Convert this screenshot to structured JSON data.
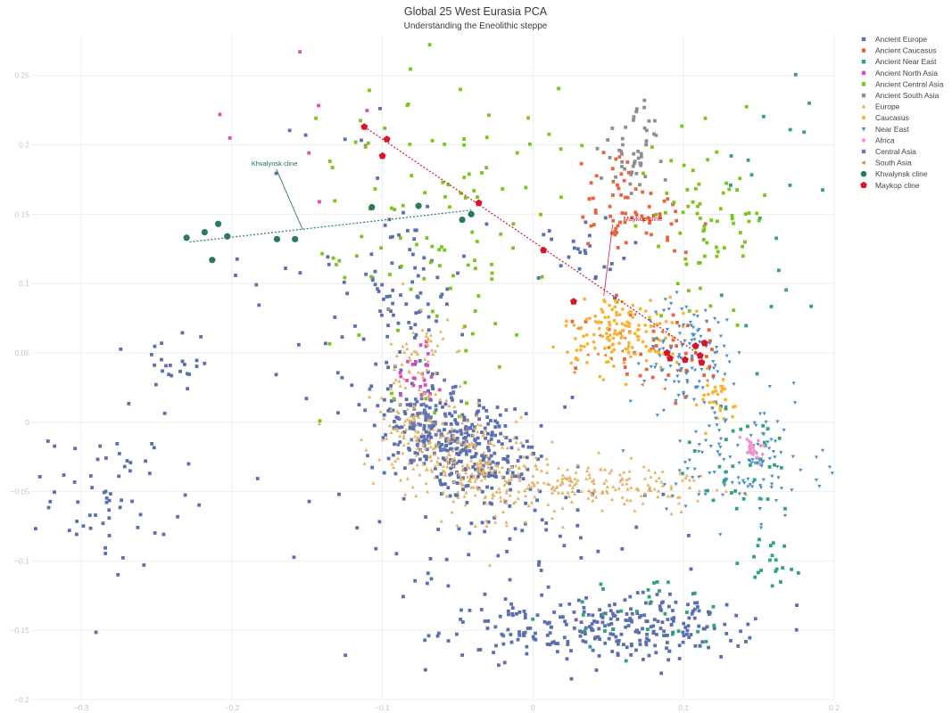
{
  "chart_data": {
    "type": "scatter",
    "title": "Global 25 West Eurasia PCA",
    "subtitle": "Understanding the Eneolithic steppe",
    "xlim": [
      -0.345,
      0.2
    ],
    "ylim": [
      -0.2,
      0.28
    ],
    "x_ticks": [
      -0.3,
      -0.2,
      -0.1,
      0,
      0.1,
      0.2
    ],
    "x_tick_labels": [
      "−0.3",
      "−0.2",
      "−0.1",
      "0",
      "0.1",
      "0.2"
    ],
    "y_ticks": [
      0.25,
      0.2,
      0.15,
      0.1,
      0.05,
      0,
      -0.05,
      -0.1,
      -0.15,
      -0.2
    ],
    "y_tick_labels": [
      "0.25",
      "0.2",
      "0.15",
      "0.1",
      "0.05",
      "0",
      "−0.05",
      "−0.1",
      "−0.15",
      "−0.2"
    ],
    "grid": true,
    "legend_position": "top-right",
    "series": [
      {
        "name": "Ancient Europe",
        "color": "#5a6fb0",
        "marker": "square"
      },
      {
        "name": "Ancient Caucasus",
        "color": "#e8643c",
        "marker": "square"
      },
      {
        "name": "Ancient Near East",
        "color": "#2fa37a",
        "marker": "square"
      },
      {
        "name": "Ancient North Asia",
        "color": "#d94fb8",
        "marker": "square"
      },
      {
        "name": "Ancient Central Asia",
        "color": "#7cc41c",
        "marker": "square"
      },
      {
        "name": "Ancient South Asia",
        "color": "#8e8e8e",
        "marker": "square"
      },
      {
        "name": "Europe",
        "color": "#e2b46a",
        "marker": "triangle-up"
      },
      {
        "name": "Caucasus",
        "color": "#f7b436",
        "marker": "circle"
      },
      {
        "name": "Near East",
        "color": "#4c8fc6",
        "marker": "triangle-down"
      },
      {
        "name": "Africa",
        "color": "#f08fd0",
        "marker": "diamond"
      },
      {
        "name": "Central Asia",
        "color": "#6d7bb5",
        "marker": "square"
      },
      {
        "name": "South Asia",
        "color": "#e97e36",
        "marker": "triangle-left"
      },
      {
        "name": "Khvalynsk cline",
        "color": "#2c7a5c",
        "marker": "circle-large"
      },
      {
        "name": "Maykop cline",
        "color": "#d8132c",
        "marker": "pentagon"
      }
    ],
    "clusters": [
      {
        "series": "Ancient Europe",
        "cx": -0.05,
        "cy": -0.015,
        "sx": 0.028,
        "sy": 0.018,
        "n": 340,
        "tilt": -0.7
      },
      {
        "series": "Ancient Europe",
        "cx": 0.01,
        "cy": -0.15,
        "sx": 0.035,
        "sy": 0.01,
        "n": 120
      },
      {
        "series": "Ancient Europe",
        "cx": 0.085,
        "cy": -0.148,
        "sx": 0.03,
        "sy": 0.012,
        "n": 150
      },
      {
        "series": "Ancient Europe",
        "cx": -0.28,
        "cy": -0.055,
        "sx": 0.02,
        "sy": 0.025,
        "n": 60
      },
      {
        "series": "Ancient Europe",
        "cx": -0.245,
        "cy": 0.03,
        "sx": 0.012,
        "sy": 0.02,
        "n": 25
      },
      {
        "series": "Ancient Europe",
        "cx": -0.085,
        "cy": 0.09,
        "sx": 0.02,
        "sy": 0.03,
        "n": 70
      },
      {
        "series": "Ancient Europe",
        "cx": -0.03,
        "cy": -0.08,
        "sx": 0.06,
        "sy": 0.04,
        "n": 90
      },
      {
        "series": "Ancient Europe",
        "cx": 0.035,
        "cy": 0.12,
        "sx": 0.015,
        "sy": 0.015,
        "n": 25
      },
      {
        "series": "Ancient Europe",
        "cx": -0.12,
        "cy": 0.12,
        "sx": 0.04,
        "sy": 0.08,
        "n": 40
      },
      {
        "series": "Ancient Caucasus",
        "cx": 0.055,
        "cy": 0.16,
        "sx": 0.01,
        "sy": 0.02,
        "n": 40
      },
      {
        "series": "Ancient Caucasus",
        "cx": 0.08,
        "cy": 0.145,
        "sx": 0.015,
        "sy": 0.012,
        "n": 30
      },
      {
        "series": "Ancient Caucasus",
        "cx": 0.085,
        "cy": 0.05,
        "sx": 0.025,
        "sy": 0.02,
        "n": 40
      },
      {
        "series": "Ancient Near East",
        "cx": 0.14,
        "cy": -0.03,
        "sx": 0.025,
        "sy": 0.02,
        "n": 35
      },
      {
        "series": "Ancient Near East",
        "cx": 0.16,
        "cy": -0.1,
        "sx": 0.01,
        "sy": 0.01,
        "n": 20
      },
      {
        "series": "Ancient Near East",
        "cx": 0.08,
        "cy": -0.14,
        "sx": 0.03,
        "sy": 0.015,
        "n": 30
      },
      {
        "series": "Ancient Near East",
        "cx": 0.16,
        "cy": 0.15,
        "sx": 0.02,
        "sy": 0.06,
        "n": 20
      },
      {
        "series": "Ancient North Asia",
        "cx": -0.075,
        "cy": 0.04,
        "sx": 0.008,
        "sy": 0.015,
        "n": 25
      },
      {
        "series": "Ancient North Asia",
        "cx": -0.14,
        "cy": 0.22,
        "sx": 0.03,
        "sy": 0.03,
        "n": 8
      },
      {
        "series": "Ancient Central Asia",
        "cx": -0.06,
        "cy": 0.12,
        "sx": 0.04,
        "sy": 0.05,
        "n": 80
      },
      {
        "series": "Ancient Central Asia",
        "cx": 0.12,
        "cy": 0.15,
        "sx": 0.02,
        "sy": 0.03,
        "n": 70
      },
      {
        "series": "Ancient Central Asia",
        "cx": -0.08,
        "cy": 0.2,
        "sx": 0.05,
        "sy": 0.03,
        "n": 30
      },
      {
        "series": "Ancient South Asia",
        "cx": 0.065,
        "cy": 0.19,
        "sx": 0.01,
        "sy": 0.012,
        "n": 40
      },
      {
        "series": "Ancient South Asia",
        "cx": 0.075,
        "cy": 0.22,
        "sx": 0.005,
        "sy": 0.01,
        "n": 10
      },
      {
        "series": "Europe",
        "cx": -0.05,
        "cy": -0.025,
        "sx": 0.03,
        "sy": 0.018,
        "n": 300,
        "tilt": -0.7
      },
      {
        "series": "Europe",
        "cx": 0.04,
        "cy": -0.045,
        "sx": 0.04,
        "sy": 0.008,
        "n": 180
      },
      {
        "series": "Europe",
        "cx": -0.075,
        "cy": 0.045,
        "sx": 0.01,
        "sy": 0.02,
        "n": 60
      },
      {
        "series": "Caucasus",
        "cx": 0.06,
        "cy": 0.065,
        "sx": 0.02,
        "sy": 0.013,
        "n": 150
      },
      {
        "series": "Caucasus",
        "cx": 0.12,
        "cy": 0.015,
        "sx": 0.01,
        "sy": 0.01,
        "n": 30
      },
      {
        "series": "Near East",
        "cx": 0.105,
        "cy": 0.05,
        "sx": 0.015,
        "sy": 0.02,
        "n": 120
      },
      {
        "series": "Near East",
        "cx": 0.14,
        "cy": -0.03,
        "sx": 0.025,
        "sy": 0.02,
        "n": 120
      },
      {
        "series": "Africa",
        "cx": 0.145,
        "cy": -0.02,
        "sx": 0.005,
        "sy": 0.006,
        "n": 25
      },
      {
        "series": "Central Asia",
        "cx": -0.065,
        "cy": 0.0,
        "sx": 0.02,
        "sy": 0.015,
        "n": 40
      },
      {
        "series": "South Asia",
        "cx": 0.065,
        "cy": 0.05,
        "sx": 0.02,
        "sy": 0.015,
        "n": 20
      }
    ],
    "khvalynsk_points": [
      [
        -0.23,
        0.133
      ],
      [
        -0.218,
        0.137
      ],
      [
        -0.209,
        0.143
      ],
      [
        -0.203,
        0.134
      ],
      [
        -0.213,
        0.117
      ],
      [
        -0.17,
        0.132
      ],
      [
        -0.158,
        0.132
      ],
      [
        -0.107,
        0.155
      ],
      [
        -0.076,
        0.156
      ],
      [
        -0.047,
        0.146
      ],
      [
        -0.041,
        0.15
      ]
    ],
    "maykop_points": [
      [
        -0.112,
        0.213
      ],
      [
        -0.097,
        0.204
      ],
      [
        -0.1,
        0.192
      ],
      [
        -0.036,
        0.158
      ],
      [
        0.007,
        0.124
      ],
      [
        0.027,
        0.087
      ],
      [
        0.089,
        0.05
      ],
      [
        0.091,
        0.046
      ],
      [
        0.108,
        0.055
      ],
      [
        0.114,
        0.057
      ],
      [
        0.111,
        0.048
      ],
      [
        0.112,
        0.043
      ],
      [
        0.101,
        0.045
      ]
    ],
    "khvalynsk_line": [
      [
        -0.228,
        0.13
      ],
      [
        -0.04,
        0.153
      ]
    ],
    "maykop_line": [
      [
        -0.112,
        0.213
      ],
      [
        0.113,
        0.047
      ]
    ],
    "annotations": [
      {
        "text": "Khvalynsk cline",
        "color": "#1e6e50",
        "label_at": [
          -0.187,
          0.185
        ],
        "points_to": [
          -0.153,
          0.139
        ]
      },
      {
        "text": "Maykop cline",
        "color": "#d8132c",
        "label_at": [
          0.06,
          0.145
        ],
        "points_to": [
          0.047,
          0.091
        ]
      }
    ]
  }
}
